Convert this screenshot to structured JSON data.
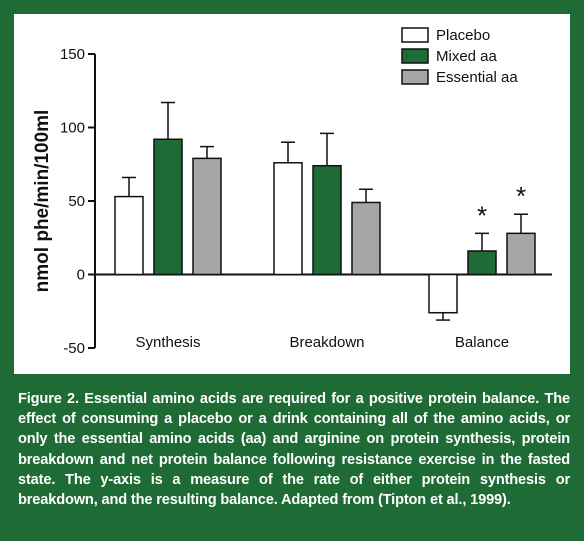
{
  "chart_data": {
    "type": "bar",
    "ylabel": "nmol phe/min/100ml",
    "ylim": [
      -50,
      150
    ],
    "yticks": [
      -50,
      0,
      50,
      100,
      150
    ],
    "categories": [
      "Synthesis",
      "Breakdown",
      "Balance"
    ],
    "series": [
      {
        "name": "Placebo",
        "values": [
          53,
          76,
          -26
        ],
        "errors": [
          13,
          14,
          5
        ],
        "color": "#ffffff"
      },
      {
        "name": "Mixed aa",
        "values": [
          92,
          74,
          16
        ],
        "errors": [
          25,
          22,
          12
        ],
        "color": "#1e6b35"
      },
      {
        "name": "Essential aa",
        "values": [
          79,
          49,
          28
        ],
        "errors": [
          8,
          9,
          13
        ],
        "color": "#a6a6a8"
      }
    ],
    "annotations": [
      {
        "category": "Balance",
        "series": "Mixed aa",
        "text": "*"
      },
      {
        "category": "Balance",
        "series": "Essential aa",
        "text": "*"
      }
    ],
    "legend": "top-right"
  },
  "caption": "Figure 2. Essential amino acids are required for a positive protein balance. The effect of consuming a placebo or a drink containing all of the amino acids, or only the essential amino acids (aa) and arginine on protein synthesis, protein breakdown and net protein balance following resistance exercise in the fasted state. The y-axis is a measure of the rate of either protein synthesis or breakdown, and the resulting balance. Adapted from (Tipton et al., 1999)."
}
